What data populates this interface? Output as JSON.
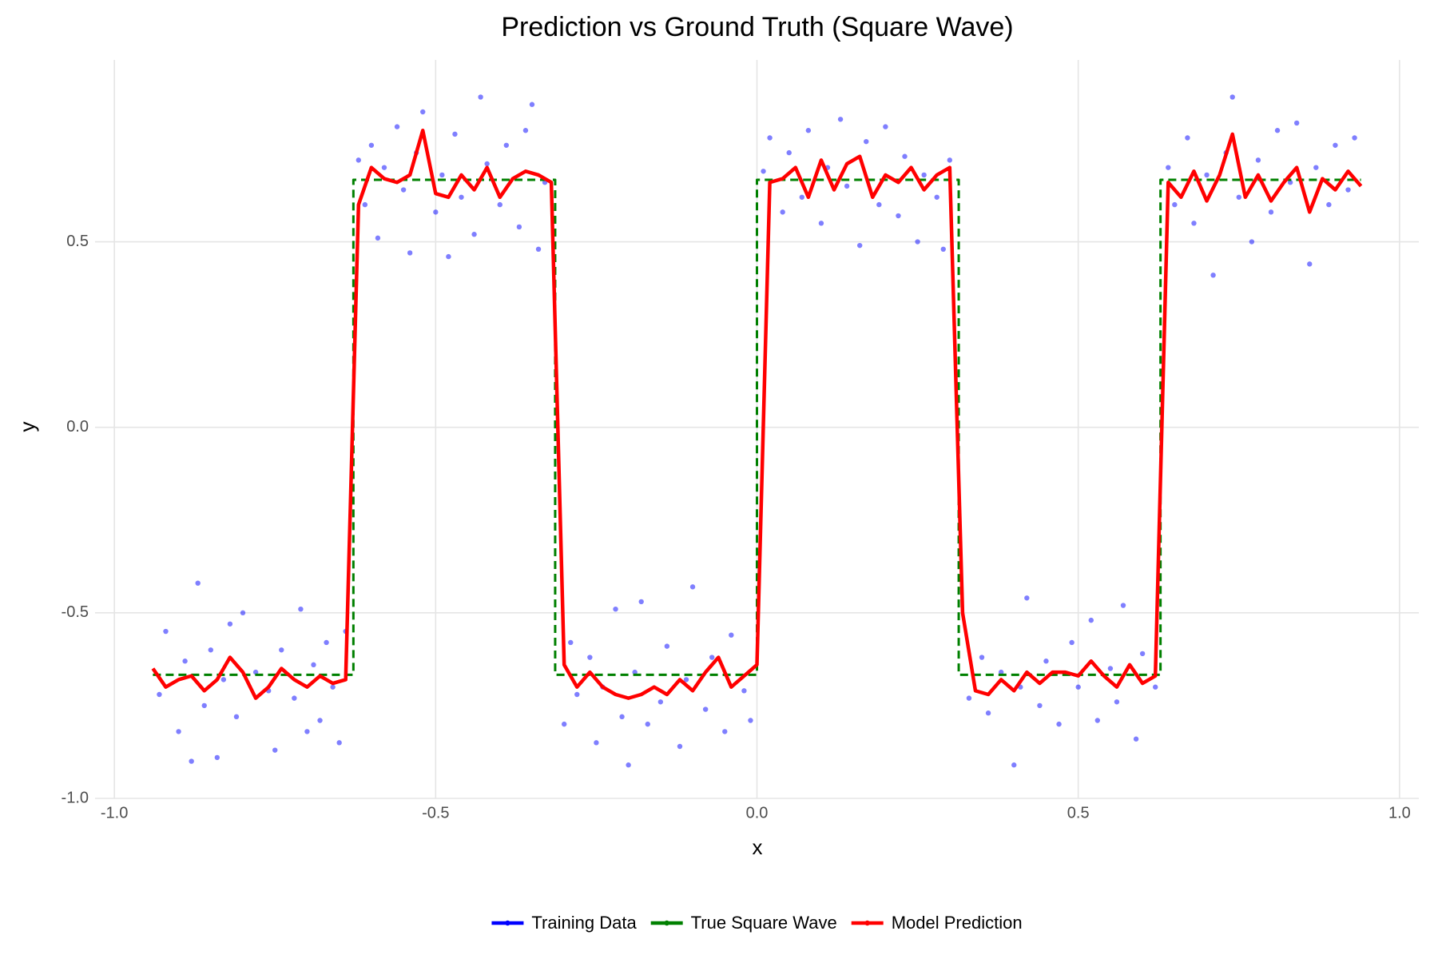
{
  "chart_data": {
    "type": "line",
    "title": "Prediction vs Ground Truth (Square Wave)",
    "x_label": "x",
    "y_label": "y",
    "xlim": [
      -1.03,
      1.03
    ],
    "ylim": [
      -1.0,
      0.99
    ],
    "xticks": [
      {
        "value": -1.0,
        "label": "-1.0"
      },
      -0.5,
      {
        "value": 0.0,
        "label": "0.0"
      },
      0.5,
      {
        "value": 1.0,
        "label": "1.0"
      }
    ],
    "yticks": [
      {
        "value": -1.0,
        "label": "-1.0"
      },
      -0.5,
      {
        "value": 0.0,
        "label": "0.0"
      },
      0.5
    ],
    "grid": true,
    "legend_position": "bottom",
    "series": [
      {
        "name": "Training Data",
        "color": "#0000ff",
        "type": "scatter",
        "x": [
          -0.93,
          -0.92,
          -0.9,
          -0.89,
          -0.88,
          -0.87,
          -0.86,
          -0.85,
          -0.84,
          -0.83,
          -0.82,
          -0.81,
          -0.8,
          -0.78,
          -0.76,
          -0.75,
          -0.74,
          -0.72,
          -0.71,
          -0.7,
          -0.69,
          -0.68,
          -0.67,
          -0.66,
          -0.65,
          -0.64,
          -0.62,
          -0.61,
          -0.6,
          -0.59,
          -0.58,
          -0.56,
          -0.55,
          -0.54,
          -0.53,
          -0.52,
          -0.5,
          -0.49,
          -0.48,
          -0.47,
          -0.46,
          -0.44,
          -0.43,
          -0.42,
          -0.4,
          -0.39,
          -0.37,
          -0.36,
          -0.35,
          -0.34,
          -0.33,
          -0.3,
          -0.29,
          -0.28,
          -0.26,
          -0.25,
          -0.24,
          -0.22,
          -0.21,
          -0.2,
          -0.19,
          -0.18,
          -0.17,
          -0.15,
          -0.14,
          -0.12,
          -0.11,
          -0.1,
          -0.08,
          -0.07,
          -0.05,
          -0.04,
          -0.02,
          -0.01,
          0.01,
          0.02,
          0.04,
          0.05,
          0.07,
          0.08,
          0.1,
          0.11,
          0.13,
          0.14,
          0.16,
          0.17,
          0.19,
          0.2,
          0.22,
          0.23,
          0.25,
          0.26,
          0.28,
          0.29,
          0.3,
          0.33,
          0.35,
          0.36,
          0.38,
          0.4,
          0.41,
          0.42,
          0.44,
          0.45,
          0.47,
          0.49,
          0.5,
          0.52,
          0.53,
          0.55,
          0.56,
          0.57,
          0.59,
          0.6,
          0.62,
          0.64,
          0.65,
          0.67,
          0.68,
          0.7,
          0.71,
          0.73,
          0.74,
          0.75,
          0.77,
          0.78,
          0.8,
          0.81,
          0.83,
          0.84,
          0.86,
          0.87,
          0.89,
          0.9,
          0.92,
          0.93
        ],
        "values": [
          -0.72,
          -0.55,
          -0.82,
          -0.63,
          -0.9,
          -0.42,
          -0.75,
          -0.6,
          -0.89,
          -0.68,
          -0.53,
          -0.78,
          -0.5,
          -0.66,
          -0.71,
          -0.87,
          -0.6,
          -0.73,
          -0.49,
          -0.82,
          -0.64,
          -0.79,
          -0.58,
          -0.7,
          -0.85,
          -0.55,
          0.72,
          0.6,
          0.76,
          0.51,
          0.7,
          0.81,
          0.64,
          0.47,
          0.74,
          0.85,
          0.58,
          0.68,
          0.46,
          0.79,
          0.62,
          0.52,
          0.89,
          0.71,
          0.6,
          0.76,
          0.54,
          0.8,
          0.87,
          0.48,
          0.66,
          -0.8,
          -0.58,
          -0.72,
          -0.62,
          -0.85,
          -0.7,
          -0.49,
          -0.78,
          -0.91,
          -0.66,
          -0.47,
          -0.8,
          -0.74,
          -0.59,
          -0.86,
          -0.68,
          -0.43,
          -0.76,
          -0.62,
          -0.82,
          -0.56,
          -0.71,
          -0.79,
          0.69,
          0.78,
          0.58,
          0.74,
          0.62,
          0.8,
          0.55,
          0.7,
          0.83,
          0.65,
          0.49,
          0.77,
          0.6,
          0.81,
          0.57,
          0.73,
          0.5,
          0.68,
          0.62,
          0.48,
          0.72,
          -0.73,
          -0.62,
          -0.77,
          -0.66,
          -0.91,
          -0.7,
          -0.46,
          -0.75,
          -0.63,
          -0.8,
          -0.58,
          -0.7,
          -0.52,
          -0.79,
          -0.65,
          -0.74,
          -0.48,
          -0.84,
          -0.61,
          -0.7,
          0.7,
          0.6,
          0.78,
          0.55,
          0.68,
          0.41,
          0.74,
          0.89,
          0.62,
          0.5,
          0.72,
          0.58,
          0.8,
          0.66,
          0.82,
          0.44,
          0.7,
          0.6,
          0.76,
          0.64,
          0.78
        ]
      },
      {
        "name": "True Square Wave",
        "color": "#008000",
        "type": "line",
        "dashed": true,
        "x": [
          -0.94,
          -0.628,
          -0.628,
          -0.314,
          -0.314,
          0.0,
          0.0,
          0.314,
          0.314,
          0.628,
          0.628,
          0.94
        ],
        "values": [
          -0.667,
          -0.667,
          0.667,
          0.667,
          -0.667,
          -0.667,
          0.667,
          0.667,
          -0.667,
          -0.667,
          0.667,
          0.667
        ]
      },
      {
        "name": "Model Prediction",
        "color": "#ff0000",
        "type": "line",
        "dashed": false,
        "x": [
          -0.94,
          -0.92,
          -0.9,
          -0.88,
          -0.86,
          -0.84,
          -0.82,
          -0.8,
          -0.78,
          -0.76,
          -0.74,
          -0.72,
          -0.7,
          -0.68,
          -0.66,
          -0.64,
          -0.62,
          -0.6,
          -0.58,
          -0.56,
          -0.54,
          -0.52,
          -0.5,
          -0.48,
          -0.46,
          -0.44,
          -0.42,
          -0.4,
          -0.38,
          -0.36,
          -0.34,
          -0.32,
          -0.3,
          -0.28,
          -0.26,
          -0.24,
          -0.22,
          -0.2,
          -0.18,
          -0.16,
          -0.14,
          -0.12,
          -0.1,
          -0.08,
          -0.06,
          -0.04,
          -0.02,
          0.0,
          0.02,
          0.04,
          0.06,
          0.08,
          0.1,
          0.12,
          0.14,
          0.16,
          0.18,
          0.2,
          0.22,
          0.24,
          0.26,
          0.28,
          0.3,
          0.32,
          0.34,
          0.36,
          0.38,
          0.4,
          0.42,
          0.44,
          0.46,
          0.48,
          0.5,
          0.52,
          0.54,
          0.56,
          0.58,
          0.6,
          0.62,
          0.64,
          0.66,
          0.68,
          0.7,
          0.72,
          0.74,
          0.76,
          0.78,
          0.8,
          0.82,
          0.84,
          0.86,
          0.88,
          0.9,
          0.92,
          0.94
        ],
        "values": [
          -0.65,
          -0.7,
          -0.68,
          -0.67,
          -0.71,
          -0.68,
          -0.62,
          -0.66,
          -0.73,
          -0.7,
          -0.65,
          -0.68,
          -0.7,
          -0.67,
          -0.69,
          -0.68,
          0.6,
          0.7,
          0.67,
          0.66,
          0.68,
          0.8,
          0.63,
          0.62,
          0.68,
          0.64,
          0.7,
          0.62,
          0.67,
          0.69,
          0.68,
          0.66,
          -0.64,
          -0.7,
          -0.66,
          -0.7,
          -0.72,
          -0.73,
          -0.72,
          -0.7,
          -0.72,
          -0.68,
          -0.71,
          -0.66,
          -0.62,
          -0.7,
          -0.67,
          -0.64,
          0.66,
          0.67,
          0.7,
          0.62,
          0.72,
          0.64,
          0.71,
          0.73,
          0.62,
          0.68,
          0.66,
          0.7,
          0.64,
          0.68,
          0.7,
          -0.5,
          -0.71,
          -0.72,
          -0.68,
          -0.71,
          -0.66,
          -0.69,
          -0.66,
          -0.66,
          -0.67,
          -0.63,
          -0.67,
          -0.7,
          -0.64,
          -0.69,
          -0.67,
          0.66,
          0.62,
          0.69,
          0.61,
          0.68,
          0.79,
          0.62,
          0.68,
          0.61,
          0.66,
          0.7,
          0.58,
          0.67,
          0.64,
          0.69,
          0.65
        ]
      }
    ]
  }
}
